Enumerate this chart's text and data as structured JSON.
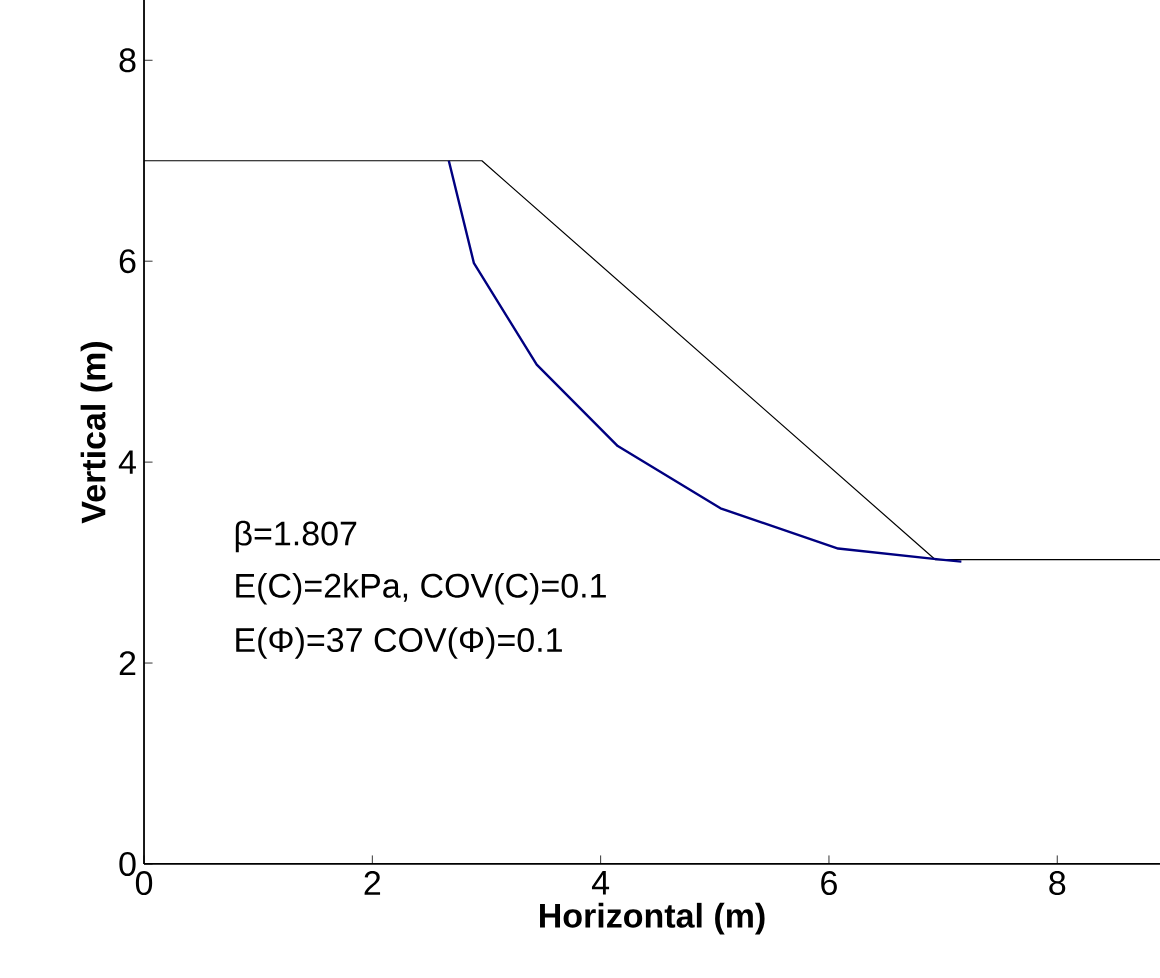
{
  "chart_data": {
    "type": "line",
    "xlabel": "Horizontal (m)",
    "ylabel": "Vertical (m)",
    "xlim": [
      0,
      8.9
    ],
    "ylim": [
      0,
      8.6
    ],
    "xticks": [
      0,
      2,
      4,
      6,
      8
    ],
    "yticks": [
      0,
      2,
      4,
      6,
      8
    ],
    "grid": false,
    "marker": "none",
    "line_style": "solid",
    "series": [
      {
        "color": "#000000",
        "x": [
          0,
          2.96,
          6.93,
          8.9
        ],
        "values": [
          7,
          7,
          3.03,
          3.03
        ]
      },
      {
        "color": "#000080",
        "x": [
          2.67,
          2.89,
          3.44,
          4.15,
          5.05,
          6.08,
          6.98,
          7.16
        ],
        "values": [
          7,
          5.98,
          4.97,
          4.16,
          3.54,
          3.14,
          3.03,
          3.01
        ]
      }
    ],
    "annotations": [
      "β=1.807",
      "E(C)=2kPa, COV(C)=0.1",
      "E(Φ)=37 COV(Φ)=0.1"
    ]
  }
}
